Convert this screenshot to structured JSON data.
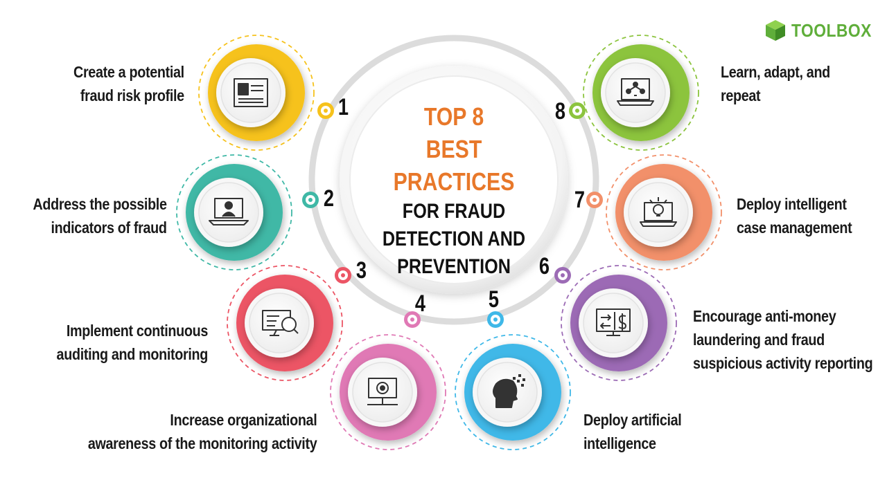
{
  "brand": {
    "name": "TOOLBOX",
    "color": "#5fae3a",
    "icon": "cube-icon"
  },
  "center": {
    "line1": "TOP 8",
    "line2": "BEST PRACTICES",
    "line3": "FOR FRAUD",
    "line4": "DETECTION AND",
    "line5": "PREVENTION",
    "accent_color": "#e8782a"
  },
  "items": [
    {
      "number": "1",
      "line1": "Create a potential",
      "line2": "fraud risk profile",
      "line3": "",
      "color": "#f6c21c",
      "icon": "id-card-icon"
    },
    {
      "number": "2",
      "line1": "Address the possible",
      "line2": "indicators of fraud",
      "line3": "",
      "color": "#3fb8a6",
      "icon": "laptop-user-icon"
    },
    {
      "number": "3",
      "line1": "Implement continuous",
      "line2": "auditing and monitoring",
      "line3": "",
      "color": "#ec5565",
      "icon": "monitor-search-icon"
    },
    {
      "number": "4",
      "line1": "Increase organizational",
      "line2": "awareness of the monitoring activity",
      "line3": "",
      "color": "#e079b5",
      "icon": "network-computer-icon"
    },
    {
      "number": "5",
      "line1": "Deploy artificial",
      "line2": "intelligence",
      "line3": "",
      "color": "#3fb8e8",
      "icon": "ai-head-icon"
    },
    {
      "number": "6",
      "line1": "Encourage anti-money",
      "line2": "laundering and fraud",
      "line3": "suspicious activity reporting",
      "color": "#9c6bb5",
      "icon": "money-transfer-icon"
    },
    {
      "number": "7",
      "line1": "Deploy intelligent",
      "line2": "case management",
      "line3": "",
      "color": "#f2906a",
      "icon": "laptop-idea-icon"
    },
    {
      "number": "8",
      "line1": "Learn, adapt, and",
      "line2": "repeat",
      "line3": "",
      "color": "#8cc43e",
      "icon": "laptop-network-icon"
    }
  ]
}
